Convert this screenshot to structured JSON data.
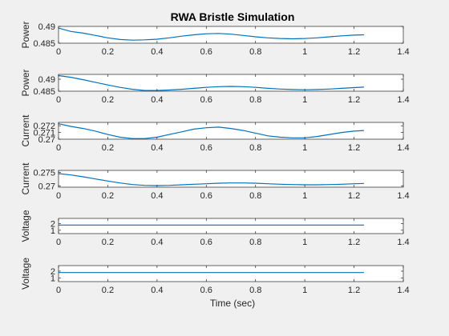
{
  "figure": {
    "title": "RWA Bristle Simulation",
    "xlabel": "Time (sec)"
  },
  "chart_data": [
    {
      "type": "line",
      "ylabel": "Power",
      "xlim": [
        0,
        1.4
      ],
      "ylim": [
        0.485,
        0.49
      ],
      "xticks": [
        0,
        0.2,
        0.4,
        0.6,
        0.8,
        1,
        1.2,
        1.4
      ],
      "xtick_labels": [
        "0",
        "0.2",
        "0.4",
        "0.6",
        "0.8",
        "1",
        "1.2",
        "1.4"
      ],
      "yticks": [
        0.485,
        0.49
      ],
      "ytick_labels": [
        "0.485",
        "0.49"
      ],
      "series": [
        {
          "color": "#0072bd",
          "x": [
            0,
            0.05,
            0.1,
            0.15,
            0.2,
            0.25,
            0.3,
            0.35,
            0.4,
            0.45,
            0.5,
            0.55,
            0.6,
            0.65,
            0.7,
            0.75,
            0.8,
            0.85,
            0.9,
            0.95,
            1.0,
            1.05,
            1.1,
            1.15,
            1.2,
            1.24
          ],
          "y": [
            0.4895,
            0.4885,
            0.488,
            0.4873,
            0.4866,
            0.4861,
            0.4859,
            0.486,
            0.4862,
            0.4866,
            0.4871,
            0.4875,
            0.4878,
            0.4879,
            0.4877,
            0.4873,
            0.4869,
            0.4866,
            0.4864,
            0.4863,
            0.4864,
            0.4866,
            0.4869,
            0.4872,
            0.4874,
            0.4875
          ]
        }
      ]
    },
    {
      "type": "line",
      "ylabel": "Power",
      "xlim": [
        0,
        1.4
      ],
      "ylim": [
        0.485,
        0.492
      ],
      "xticks": [
        0,
        0.2,
        0.4,
        0.6,
        0.8,
        1,
        1.2,
        1.4
      ],
      "xtick_labels": [
        "0",
        "0.2",
        "0.4",
        "0.6",
        "0.8",
        "1",
        "1.2",
        "1.4"
      ],
      "yticks": [
        0.485,
        0.49
      ],
      "ytick_labels": [
        "0.485",
        "0.49"
      ],
      "series": [
        {
          "color": "#0072bd",
          "x": [
            0,
            0.05,
            0.1,
            0.15,
            0.2,
            0.25,
            0.3,
            0.35,
            0.4,
            0.45,
            0.5,
            0.55,
            0.6,
            0.65,
            0.7,
            0.75,
            0.8,
            0.85,
            0.9,
            0.95,
            1.0,
            1.05,
            1.1,
            1.15,
            1.2,
            1.24
          ],
          "y": [
            0.4915,
            0.4908,
            0.4898,
            0.4887,
            0.4876,
            0.4866,
            0.4858,
            0.4853,
            0.4853,
            0.4855,
            0.4858,
            0.4862,
            0.4866,
            0.4869,
            0.487,
            0.4869,
            0.4866,
            0.4862,
            0.4859,
            0.4857,
            0.4856,
            0.4857,
            0.4859,
            0.4862,
            0.4865,
            0.4867
          ]
        }
      ]
    },
    {
      "type": "line",
      "ylabel": "Current",
      "xlim": [
        0,
        1.4
      ],
      "ylim": [
        0.27,
        0.2725
      ],
      "xticks": [
        0,
        0.2,
        0.4,
        0.6,
        0.8,
        1,
        1.2,
        1.4
      ],
      "xtick_labels": [
        "0",
        "0.2",
        "0.4",
        "0.6",
        "0.8",
        "1",
        "1.2",
        "1.4"
      ],
      "yticks": [
        0.27,
        0.271,
        0.272
      ],
      "ytick_labels": [
        "0.27",
        "0.271",
        "0.272"
      ],
      "series": [
        {
          "color": "#0072bd",
          "x": [
            0,
            0.05,
            0.1,
            0.15,
            0.2,
            0.25,
            0.3,
            0.35,
            0.4,
            0.45,
            0.5,
            0.55,
            0.6,
            0.65,
            0.7,
            0.75,
            0.8,
            0.85,
            0.9,
            0.95,
            1.0,
            1.05,
            1.1,
            1.15,
            1.2,
            1.24
          ],
          "y": [
            0.2723,
            0.2719,
            0.2716,
            0.2712,
            0.2707,
            0.2703,
            0.2701,
            0.2701,
            0.2703,
            0.2707,
            0.2711,
            0.2715,
            0.2717,
            0.2718,
            0.2716,
            0.2713,
            0.2709,
            0.2705,
            0.2703,
            0.2702,
            0.2702,
            0.2704,
            0.2707,
            0.271,
            0.2712,
            0.2713
          ]
        }
      ]
    },
    {
      "type": "line",
      "ylabel": "Current",
      "xlim": [
        0,
        1.4
      ],
      "ylim": [
        0.2695,
        0.2758
      ],
      "xticks": [
        0,
        0.2,
        0.4,
        0.6,
        0.8,
        1,
        1.2,
        1.4
      ],
      "xtick_labels": [
        "0",
        "0.2",
        "0.4",
        "0.6",
        "0.8",
        "1",
        "1.2",
        "1.4"
      ],
      "yticks": [
        0.27,
        0.275
      ],
      "ytick_labels": [
        "0.27",
        "0.275"
      ],
      "series": [
        {
          "color": "#0072bd",
          "x": [
            0,
            0.05,
            0.1,
            0.15,
            0.2,
            0.25,
            0.3,
            0.35,
            0.4,
            0.45,
            0.5,
            0.55,
            0.6,
            0.65,
            0.7,
            0.75,
            0.8,
            0.85,
            0.9,
            0.95,
            1.0,
            1.05,
            1.1,
            1.15,
            1.2,
            1.24
          ],
          "y": [
            0.2746,
            0.2741,
            0.2734,
            0.2726,
            0.2718,
            0.2711,
            0.2705,
            0.2702,
            0.2701,
            0.2702,
            0.2704,
            0.2706,
            0.2708,
            0.271,
            0.2711,
            0.2711,
            0.271,
            0.2708,
            0.2706,
            0.2705,
            0.2704,
            0.2704,
            0.2705,
            0.2706,
            0.2708,
            0.2709
          ]
        }
      ]
    },
    {
      "type": "line",
      "ylabel": "Voltage",
      "xlim": [
        0,
        1.4
      ],
      "ylim": [
        0.5,
        2.8
      ],
      "xticks": [
        0,
        0.2,
        0.4,
        0.6,
        0.8,
        1,
        1.2,
        1.4
      ],
      "xtick_labels": [
        "0",
        "0.2",
        "0.4",
        "0.6",
        "0.8",
        "1",
        "1.2",
        "1.4"
      ],
      "yticks": [
        1,
        2
      ],
      "ytick_labels": [
        "1",
        "2"
      ],
      "series": [
        {
          "color": "#0072bd",
          "x": [
            0,
            1.24
          ],
          "y": [
            1.8,
            1.8
          ]
        }
      ]
    },
    {
      "type": "line",
      "ylabel": "Voltage",
      "xlim": [
        0,
        1.4
      ],
      "ylim": [
        0.5,
        2.8
      ],
      "xticks": [
        0,
        0.2,
        0.4,
        0.6,
        0.8,
        1,
        1.2,
        1.4
      ],
      "xtick_labels": [
        "0",
        "0.2",
        "0.4",
        "0.6",
        "0.8",
        "1",
        "1.2",
        "1.4"
      ],
      "yticks": [
        1,
        2
      ],
      "ytick_labels": [
        "1",
        "2"
      ],
      "series": [
        {
          "color": "#0072bd",
          "x": [
            0,
            1.24
          ],
          "y": [
            1.8,
            1.8
          ]
        }
      ]
    }
  ]
}
